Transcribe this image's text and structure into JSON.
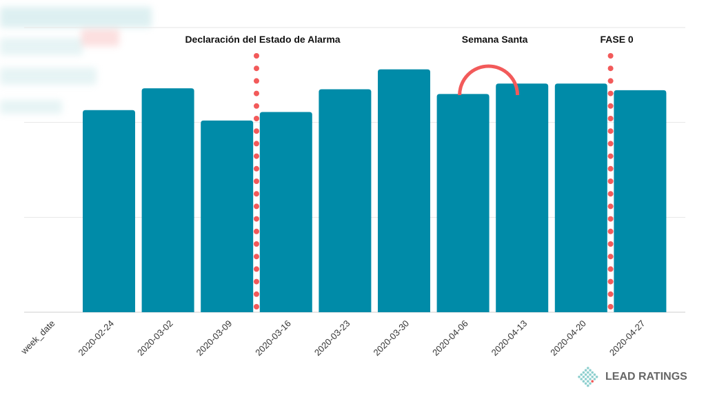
{
  "chart_data": {
    "type": "bar",
    "title": "",
    "xlabel": "week_date",
    "ylabel": "",
    "categories": [
      "2020-02-24",
      "2020-03-02",
      "2020-03-09",
      "2020-03-16",
      "2020-03-23",
      "2020-03-30",
      "2020-04-06",
      "2020-04-13",
      "2020-04-20",
      "2020-04-27"
    ],
    "values": [
      2.13,
      2.36,
      2.02,
      2.11,
      2.35,
      2.56,
      2.3,
      2.41,
      2.41,
      2.34
    ],
    "ylim": [
      0,
      3
    ],
    "grid": true,
    "bar_color": "#008ba8",
    "annotations": [
      {
        "label": "Declaración del Estado de Alarma",
        "type": "dotted-line",
        "between": [
          "2020-03-09",
          "2020-03-16"
        ],
        "color": "#f25a5a"
      },
      {
        "label": "Semana Santa",
        "type": "arc",
        "at": "2020-04-06",
        "color": "#f25a5a"
      },
      {
        "label": "FASE 0",
        "type": "dotted-line",
        "between": [
          "2020-04-20",
          "2020-04-27"
        ],
        "color": "#f25a5a"
      }
    ]
  },
  "logo": {
    "text": "LEAD RATINGS"
  }
}
